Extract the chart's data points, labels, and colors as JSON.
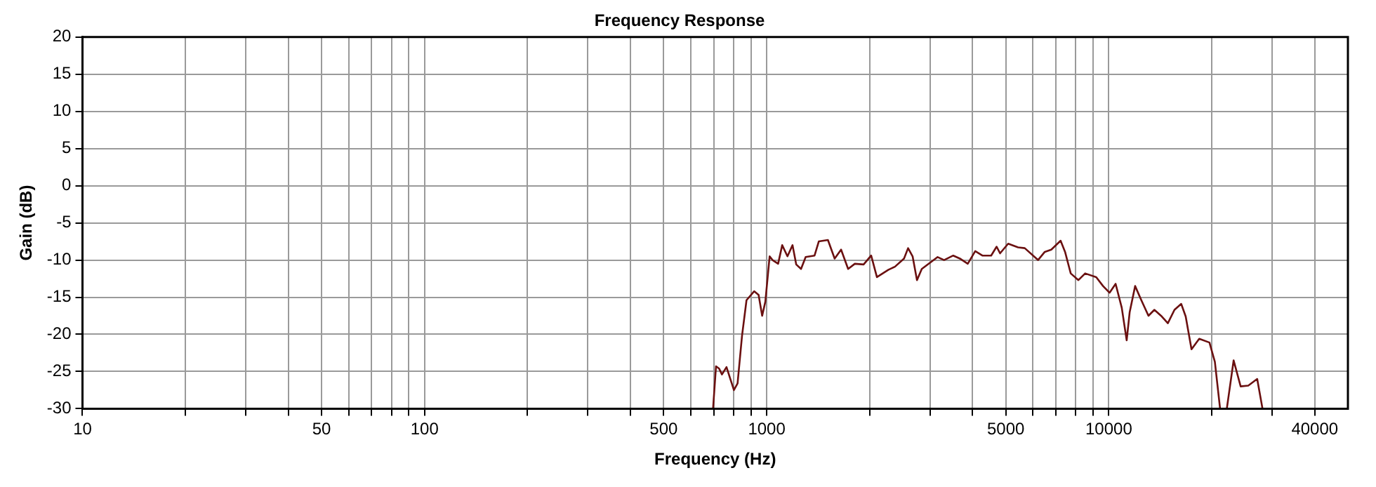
{
  "chart_data": {
    "type": "line",
    "title": "Frequency Response",
    "xlabel": "Frequency (Hz)",
    "ylabel": "Gain (dB)",
    "log": "x",
    "grid": true,
    "legend": false,
    "marker": "none",
    "xlim": [
      10,
      50000
    ],
    "ylim": [
      -30,
      20
    ],
    "xticks": [
      10,
      {
        "value": 20,
        "label": null
      },
      {
        "value": 30,
        "label": null
      },
      {
        "value": 40,
        "label": null
      },
      50,
      {
        "value": 60,
        "label": null
      },
      {
        "value": 70,
        "label": null
      },
      {
        "value": 80,
        "label": null
      },
      {
        "value": 90,
        "label": null
      },
      100,
      {
        "value": 200,
        "label": null
      },
      {
        "value": 300,
        "label": null
      },
      {
        "value": 400,
        "label": null
      },
      500,
      {
        "value": 600,
        "label": null
      },
      {
        "value": 700,
        "label": null
      },
      {
        "value": 800,
        "label": null
      },
      {
        "value": 900,
        "label": null
      },
      1000,
      {
        "value": 2000,
        "label": null
      },
      {
        "value": 3000,
        "label": null
      },
      {
        "value": 4000,
        "label": null
      },
      5000,
      {
        "value": 6000,
        "label": null
      },
      {
        "value": 7000,
        "label": null
      },
      {
        "value": 8000,
        "label": null
      },
      {
        "value": 9000,
        "label": null
      },
      10000,
      {
        "value": 20000,
        "label": null
      },
      {
        "value": 30000,
        "label": null
      },
      40000
    ],
    "yticks": [
      -30,
      -25,
      -20,
      -15,
      -10,
      -5,
      0,
      5,
      10,
      15,
      20
    ],
    "series": [
      {
        "color": "#6b1010",
        "x": [
          697,
          711,
          726,
          740,
          763,
          802,
          822,
          847,
          873,
          919,
          947,
          970,
          991,
          1020,
          1040,
          1080,
          1110,
          1150,
          1190,
          1220,
          1260,
          1300,
          1380,
          1420,
          1510,
          1580,
          1650,
          1730,
          1810,
          1920,
          2020,
          2100,
          2270,
          2370,
          2520,
          2590,
          2670,
          2750,
          2840,
          3160,
          3300,
          3510,
          3670,
          3870,
          4070,
          4270,
          4530,
          4700,
          4810,
          5080,
          5430,
          5680,
          6210,
          6500,
          6790,
          7230,
          7450,
          7740,
          8150,
          8530,
          9190,
          9620,
          10050,
          10470,
          10910,
          11280,
          11510,
          11940,
          12420,
          13060,
          13590,
          14290,
          14880,
          15560,
          16280,
          16780,
          17450,
          18380,
          19690,
          20420,
          21150,
          21600,
          22130,
          23170,
          24290,
          25570,
          27150,
          28140
        ],
        "values": [
          -30,
          -24.3,
          -24.6,
          -25.4,
          -24.4,
          -27.5,
          -26.6,
          -20.2,
          -15.4,
          -14.2,
          -14.7,
          -17.5,
          -15.6,
          -9.5,
          -10,
          -10.5,
          -8,
          -9.5,
          -8,
          -10.6,
          -11.2,
          -9.6,
          -9.4,
          -7.5,
          -7.3,
          -9.8,
          -8.6,
          -11.2,
          -10.5,
          -10.6,
          -9.4,
          -12.3,
          -11.3,
          -10.9,
          -9.8,
          -8.4,
          -9.5,
          -12.7,
          -11.2,
          -9.6,
          -10,
          -9.4,
          -9.8,
          -10.5,
          -8.8,
          -9.4,
          -9.4,
          -8.2,
          -9.1,
          -7.8,
          -8.3,
          -8.4,
          -10,
          -8.9,
          -8.6,
          -7.4,
          -8.9,
          -11.8,
          -12.7,
          -11.8,
          -12.3,
          -13.5,
          -14.4,
          -13.2,
          -16.4,
          -20.8,
          -17,
          -13.5,
          -15.3,
          -17.5,
          -16.7,
          -17.6,
          -18.5,
          -16.7,
          -15.9,
          -17.6,
          -22,
          -20.6,
          -21.1,
          -23.7,
          -30,
          null,
          -30,
          -23.5,
          -27,
          -26.9,
          -26,
          -30
        ]
      }
    ]
  }
}
